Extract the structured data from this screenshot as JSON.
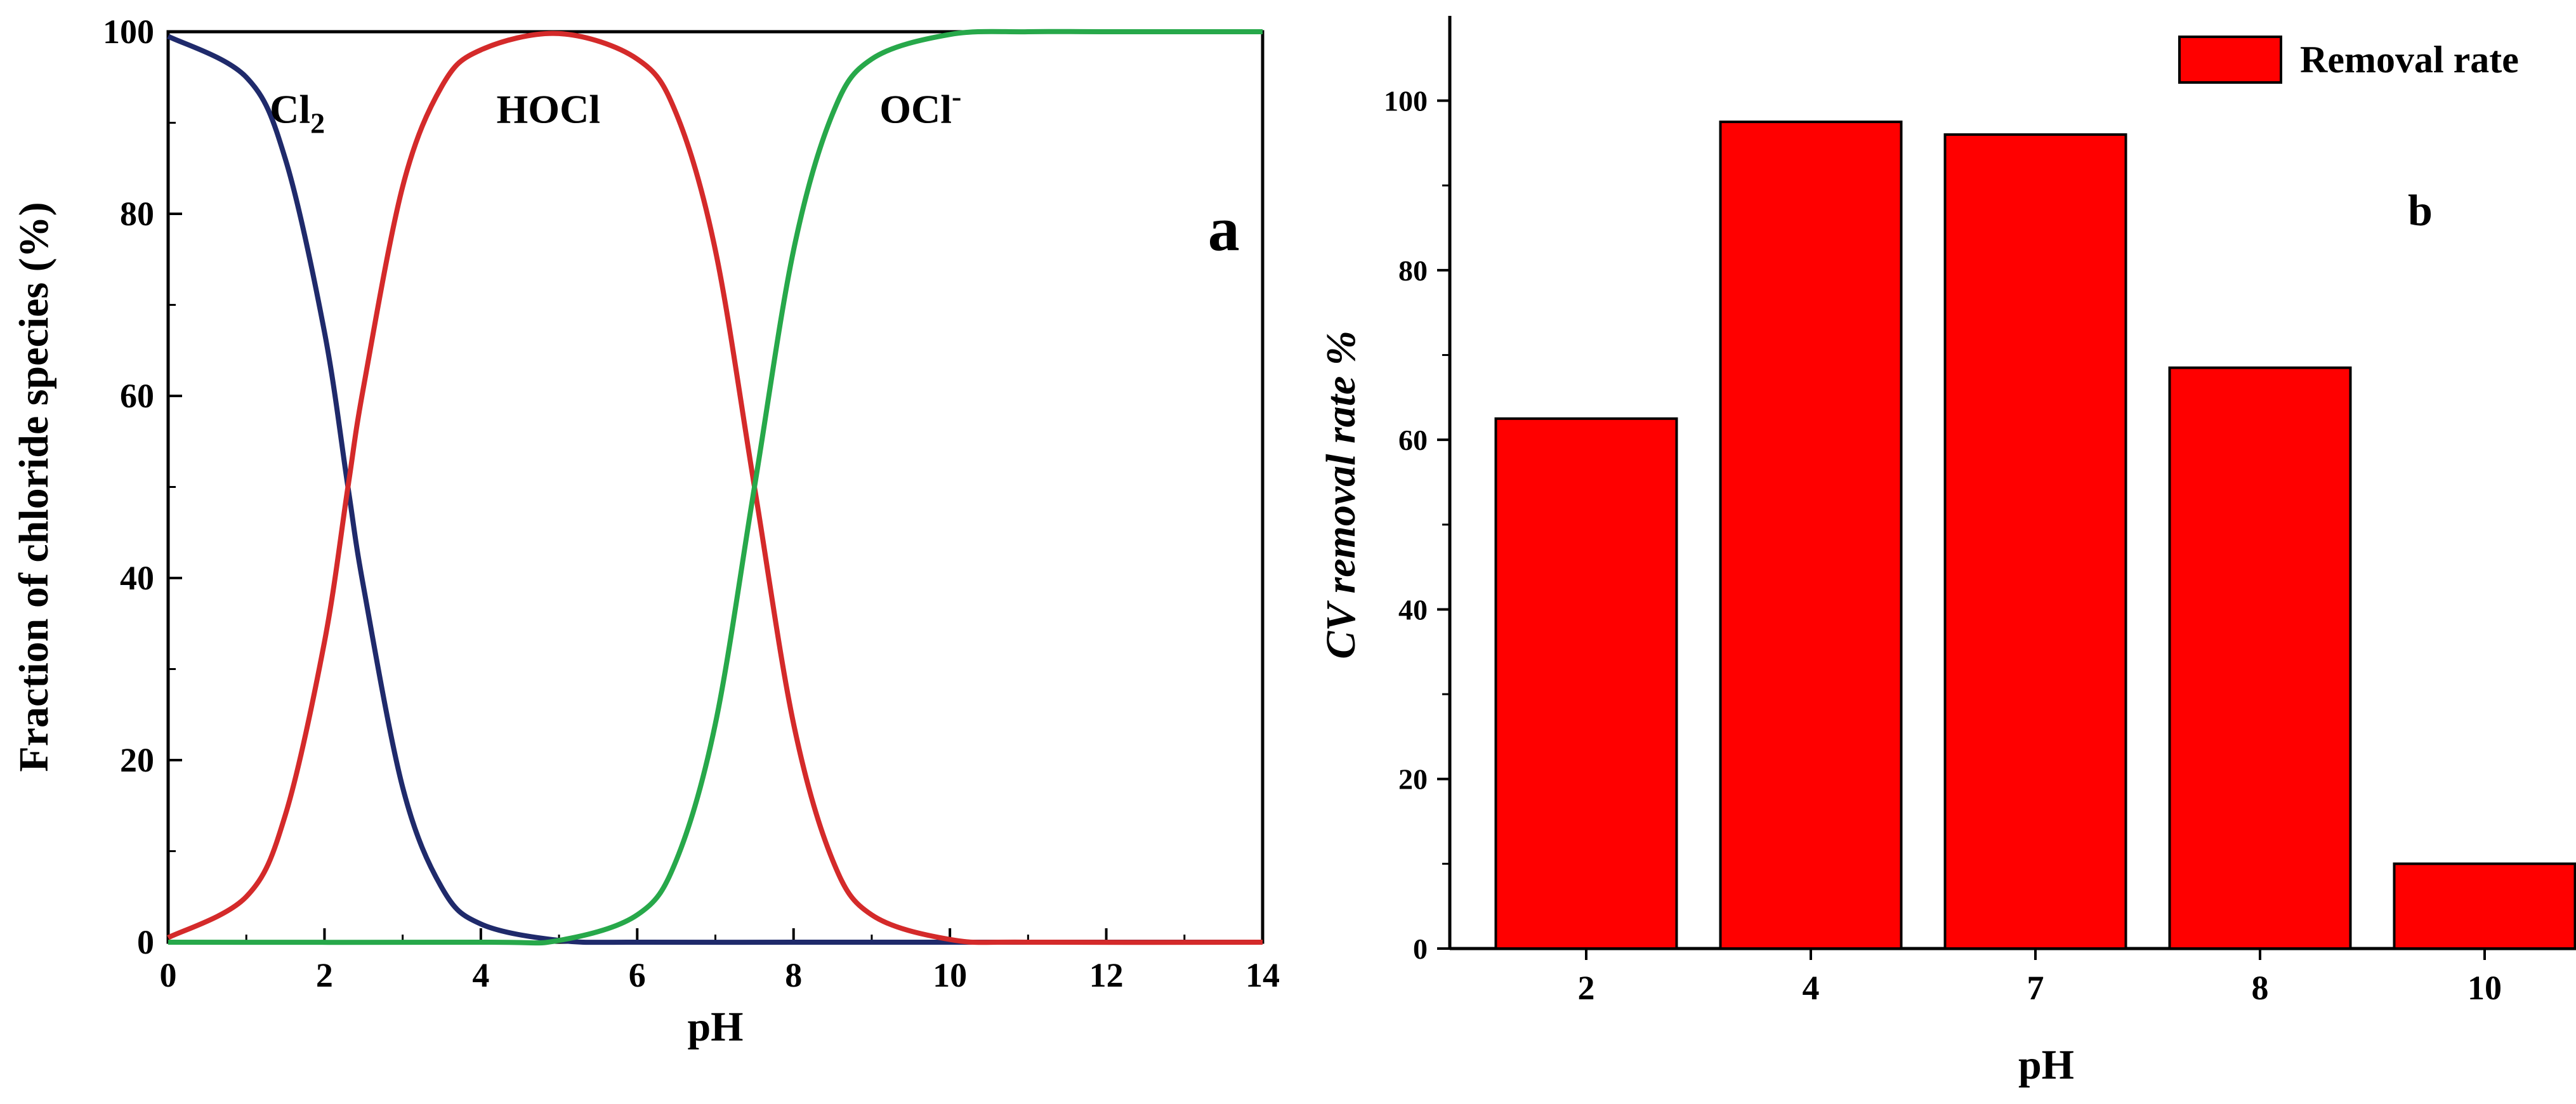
{
  "chart_data": [
    {
      "type": "line",
      "panel_label": "a",
      "xlabel": "pH",
      "ylabel": "Fraction of chloride  species (%)",
      "xlim": [
        0,
        14
      ],
      "ylim": [
        0,
        100
      ],
      "x_ticks": [
        "0",
        "2",
        "4",
        "6",
        "8",
        "10",
        "12",
        "14"
      ],
      "y_ticks": [
        "0",
        "20",
        "40",
        "60",
        "80",
        "100"
      ],
      "grid": false,
      "series": [
        {
          "name": "Cl2",
          "label_main": "Cl",
          "label_sub": "2",
          "color": "#1f2a6b",
          "x": [
            0,
            1,
            1.5,
            2,
            2.3,
            2.5,
            3,
            3.5,
            4,
            5,
            6,
            8,
            10,
            14
          ],
          "y": [
            99.5,
            95,
            86,
            67,
            50,
            39,
            17,
            6,
            2,
            0.2,
            0,
            0,
            0,
            0
          ]
        },
        {
          "name": "HOCl",
          "label_main": "HOCl",
          "label_sub": "",
          "color": "#d42a2a",
          "x": [
            0,
            1,
            1.5,
            2,
            2.3,
            2.5,
            3,
            3.5,
            4,
            5,
            6,
            6.5,
            7,
            7.5,
            8,
            8.5,
            9,
            10,
            11,
            14
          ],
          "y": [
            0.5,
            5,
            14,
            33,
            50,
            61,
            83,
            94,
            98,
            99.8,
            97,
            91,
            76,
            50,
            24,
            9,
            3,
            0.3,
            0,
            0
          ]
        },
        {
          "name": "OCl-",
          "label_main": "OCl",
          "label_sup": "-",
          "color": "#27a84a",
          "x": [
            0,
            4,
            5,
            6,
            6.5,
            7,
            7.5,
            8,
            8.5,
            9,
            10,
            11,
            12,
            14
          ],
          "y": [
            0,
            0,
            0.2,
            3,
            9,
            24,
            50,
            76,
            91,
            97,
            99.7,
            100,
            100,
            100
          ]
        }
      ]
    },
    {
      "type": "bar",
      "panel_label": "b",
      "xlabel": "pH",
      "ylabel": "CV removal rate %",
      "categories": [
        "2",
        "4",
        "7",
        "8",
        "10"
      ],
      "series": [
        {
          "name": "Removal rate",
          "color": "#ff0000",
          "values": [
            62.5,
            97.5,
            96,
            68.5,
            10
          ]
        }
      ],
      "ylim": [
        0,
        110
      ],
      "y_ticks": [
        "0",
        "20",
        "40",
        "60",
        "80",
        "100"
      ],
      "legend": "top-right",
      "grid": false
    }
  ]
}
